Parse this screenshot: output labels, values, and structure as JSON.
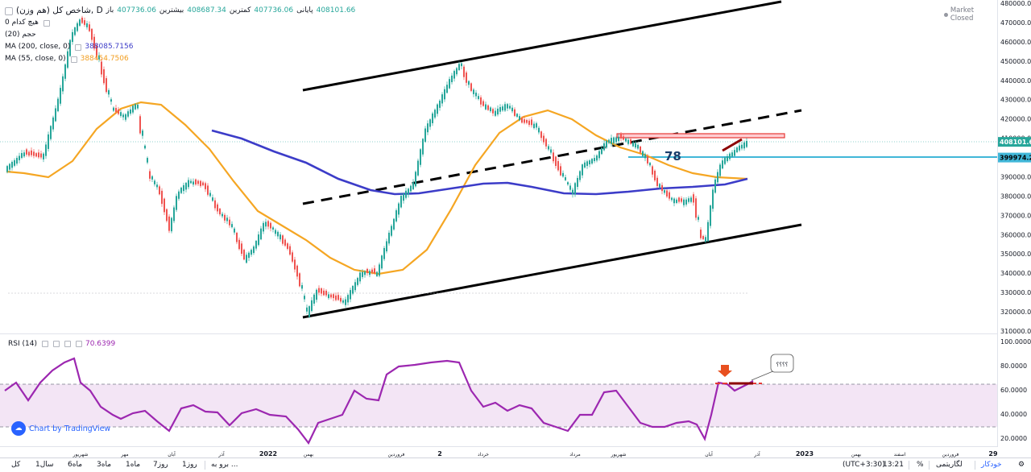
{
  "legend": {
    "title": "شاخص کل (هم وزن), D",
    "ohlc": [
      {
        "label": "باز",
        "value": "407736.06"
      },
      {
        "label": "بیشترین",
        "value": "408687.34"
      },
      {
        "label": "کمترین",
        "value": "407736.06"
      },
      {
        "label": "پایانی",
        "value": "408101.66"
      }
    ],
    "volume_label": "حجم (20)",
    "volume_value": "هیچ کدام  0",
    "ma200_label": "MA (200, close, 0)",
    "ma200_value": "388085.7156",
    "ma55_label": "MA (55, close, 0)",
    "ma55_value": "388454.7506"
  },
  "market_status": "Market Closed",
  "annotation_78": "78",
  "callout_text": "؟؟؟؟",
  "rsi": {
    "label": "RSI (14)",
    "value": "70.6399"
  },
  "tradingview_badge": "Chart by TradingView",
  "price_axis": {
    "ticks": [
      "480000.00",
      "470000.00",
      "460000.00",
      "450000.00",
      "440000.00",
      "430000.00",
      "420000.00",
      "410000.00",
      "400000.00",
      "390000.00",
      "380000.00",
      "370000.00",
      "360000.00",
      "350000.00",
      "340000.00",
      "330000.00",
      "320000.00",
      "310000.00"
    ],
    "last_price": "408101.66",
    "marker_price": "399974.21"
  },
  "rsi_axis": {
    "ticks": [
      "100.0000",
      "80.0000",
      "60.0000",
      "40.0000",
      "20.0000"
    ]
  },
  "time_axis": [
    {
      "label": "شهریور"
    },
    {
      "label": "مهر"
    },
    {
      "label": "آبان"
    },
    {
      "label": "آذر"
    },
    {
      "label": "2022"
    },
    {
      "label": "بهمن"
    },
    {
      "label": "فروردین"
    },
    {
      "label": "2"
    },
    {
      "label": "خرداد"
    },
    {
      "label": "مرداد"
    },
    {
      "label": "شهریور"
    },
    {
      "label": "آبان"
    },
    {
      "label": "آذر"
    },
    {
      "label": "2023"
    },
    {
      "label": "بهمن"
    },
    {
      "label": "اسفند"
    },
    {
      "label": "فروردین"
    },
    {
      "label": "29"
    }
  ],
  "bottom_bar": {
    "ranges": [
      "کل",
      "1سال",
      "6ماه",
      "3ماه",
      "1ماه",
      "7روز",
      "1روز"
    ],
    "goto": "برو به ...",
    "timezone": "(UTC+3:30)",
    "time": "13:21",
    "percent": "%",
    "log": "لگاریتمی",
    "auto": "خودکار"
  },
  "colors": {
    "up": "#26a69a",
    "down": "#ef5350",
    "ma200": "#3c3cc8",
    "ma55": "#f5a623",
    "rsi": "#9c27b0",
    "rsi_band": "#f3e5f5",
    "marker_line": "#41b7d8",
    "resistance": "#e53935",
    "accent": "#2962ff"
  },
  "chart_data": {
    "type": "candlestick",
    "symbol": "شاخص کل (هم وزن)",
    "interval": "D",
    "ylim": [
      310000,
      480000
    ],
    "series": [
      {
        "name": "MA (200, close, 0)",
        "last": 388085.7156
      },
      {
        "name": "MA (55, close, 0)",
        "last": 388454.7506
      }
    ],
    "close_approx": [
      {
        "x": "شهریور",
        "y": 466000
      },
      {
        "x": "مهر",
        "y": 420000
      },
      {
        "x": "آبان",
        "y": 385000
      },
      {
        "x": "آذر",
        "y": 345000
      },
      {
        "x": "2022",
        "y": 362000
      },
      {
        "x": "بهمن",
        "y": 318000
      },
      {
        "x": "فروردین",
        "y": 395000
      },
      {
        "x": "2",
        "y": 449000
      },
      {
        "x": "خرداد",
        "y": 420000
      },
      {
        "x": "مرداد",
        "y": 381000
      },
      {
        "x": "شهریور",
        "y": 401000
      },
      {
        "x": "آبان",
        "y": 356000
      },
      {
        "x": "آذر",
        "y": 408101.66
      }
    ],
    "rsi": {
      "last": 70.6399,
      "ylim": [
        10,
        105
      ],
      "bands": [
        30,
        70
      ]
    }
  }
}
